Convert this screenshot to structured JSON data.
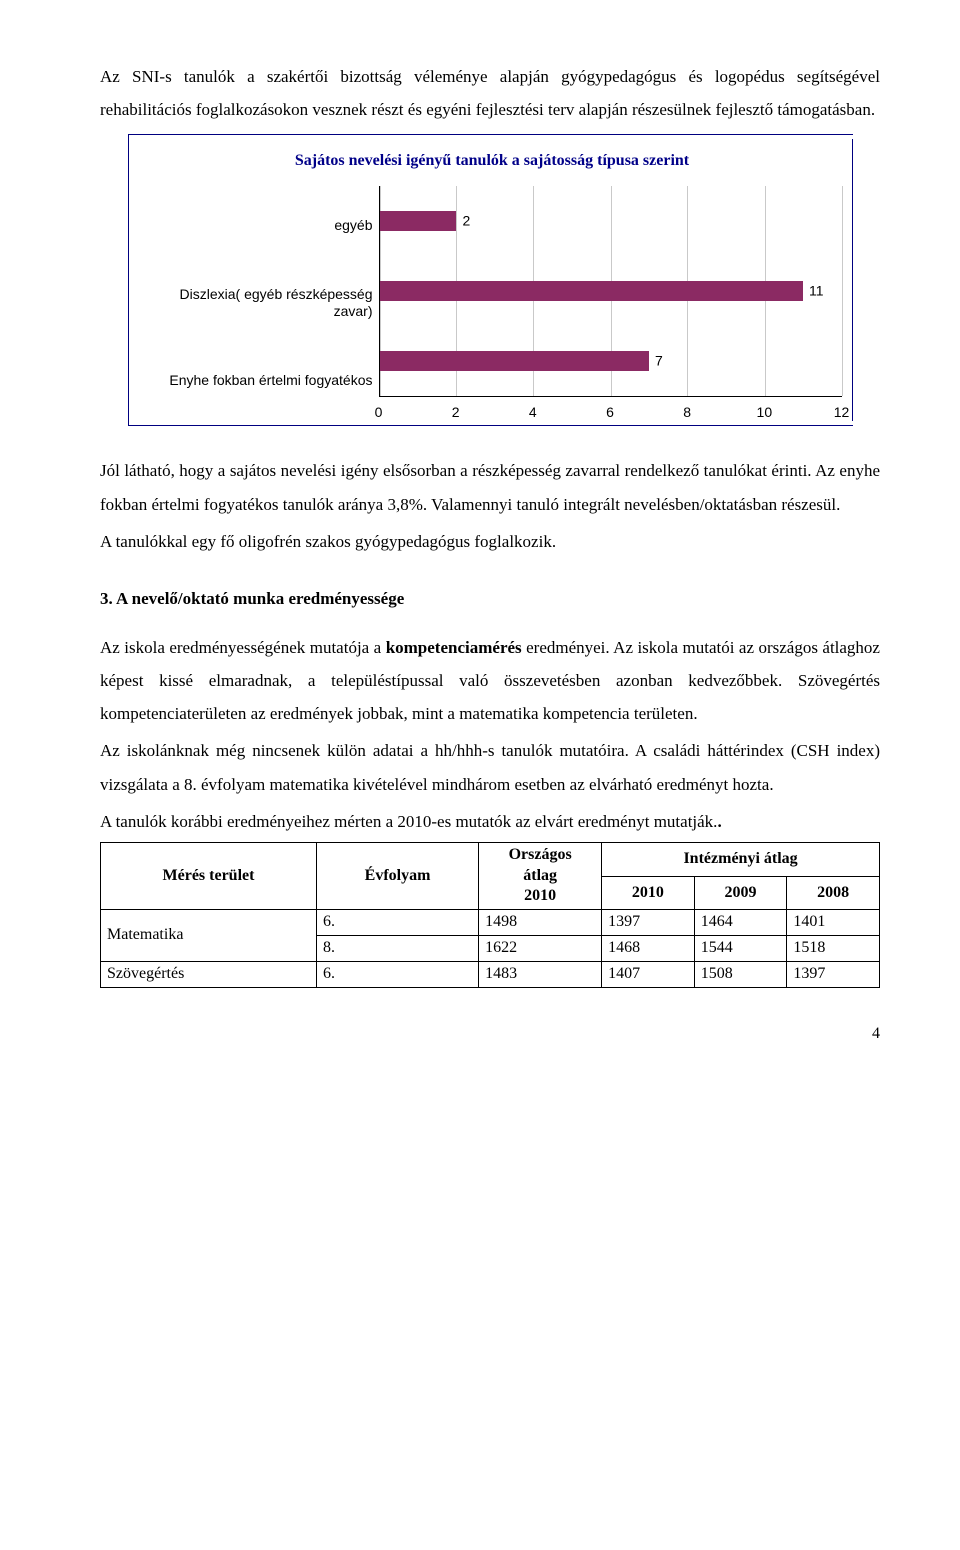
{
  "para1": "Az SNI-s tanulók a szakértői bizottság véleménye alapján gyógypedagógus és logopédus segítségével rehabilitációs foglalkozásokon vesznek részt és egyéni fejlesztési terv alapján részesülnek fejlesztő támogatásban.",
  "chart": {
    "title": "Sajátos nevelési igényű tanulók a sajátosság típusa szerint",
    "categories": [
      "egyéb",
      "Diszlexia( egyéb részképesség zavar)",
      "Enyhe fokban értelmi fogyatékos"
    ],
    "values": [
      2,
      11,
      7
    ],
    "bar_color": "#8b2a63",
    "grid_color": "#c9c9c9",
    "x_min": 0,
    "x_max": 12,
    "x_step": 2,
    "x_ticks": [
      "0",
      "2",
      "4",
      "6",
      "8",
      "10",
      "12"
    ]
  },
  "para2": "Jól látható, hogy a sajátos nevelési igény elsősorban a részképesség zavarral rendelkező tanulókat érinti. Az enyhe fokban értelmi fogyatékos tanulók aránya 3,8%. Valamennyi tanuló integrált nevelésben/oktatásban részesül.",
  "para3": "A tanulókkal egy fő oligofrén szakos gyógypedagógus foglalkozik.",
  "section_title": "3. A nevelő/oktató munka eredményessége",
  "para4_a": "Az iskola eredményességének mutatója a ",
  "para4_bold": "kompetenciamérés",
  "para4_b": " eredményei. Az iskola mutatói az országos átlaghoz képest kissé elmaradnak, a településtípussal való összevetésben azonban kedvezőbbek. Szövegértés kompetenciaterületen az eredmények jobbak, mint a matematika kompetencia területen.",
  "para5": "Az iskolánknak még nincsenek külön adatai a hh/hhh-s tanulók mutatóira. A családi háttérindex (CSH index) vizsgálata a 8. évfolyam matematika kivételével mindhárom esetben az elvárható eredményt hozta.",
  "para6": "A tanulók korábbi eredményeihez mérten a 2010-es mutatók az elvárt eredményt mutatják.",
  "table": {
    "headers": {
      "c1": "Mérés terület",
      "c2": "Évfolyam",
      "c3": "Országos átlag 2010",
      "c4": "Intézményi átlag",
      "c4a": "2010",
      "c4b": "2009",
      "c4c": "2008"
    },
    "rows": [
      {
        "area": "Matematika",
        "grade": "6.",
        "nat": "1498",
        "a": "1397",
        "b": "1464",
        "c": "1401"
      },
      {
        "area": "",
        "grade": "8.",
        "nat": "1622",
        "a": "1468",
        "b": "1544",
        "c": "1518"
      },
      {
        "area": "Szövegértés",
        "grade": "6.",
        "nat": "1483",
        "a": "1407",
        "b": "1508",
        "c": "1397"
      }
    ]
  },
  "page_number": "4"
}
